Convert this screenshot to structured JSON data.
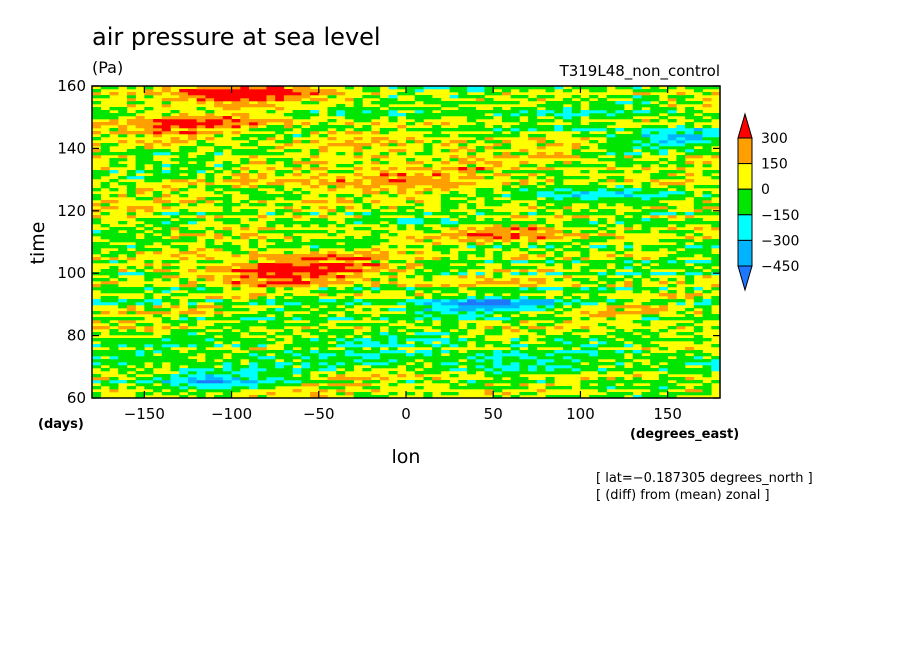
{
  "chart_data": {
    "type": "heatmap",
    "title": "air pressure at sea level",
    "units": "(Pa)",
    "experiment": "T319L48_non_control",
    "xlabel": "lon",
    "xunits": "(degrees_east)",
    "ylabel": "time",
    "yunits": "(days)",
    "xlim": [
      -180,
      180
    ],
    "ylim": [
      60,
      160
    ],
    "xticks": [
      -150,
      -100,
      -50,
      0,
      50,
      100,
      150
    ],
    "yticks": [
      60,
      80,
      100,
      120,
      140,
      160
    ],
    "xtick_labels": [
      "−150",
      "−100",
      "−50",
      "0",
      "50",
      "100",
      "150"
    ],
    "ytick_labels": [
      "60",
      "80",
      "100",
      "120",
      "140",
      "160"
    ],
    "notes": [
      "[ lat=−0.187305 degrees_north ]",
      "[ (diff) from (mean) zonal ]"
    ],
    "colorbar": {
      "levels": [
        -450,
        -300,
        -150,
        0,
        150,
        300
      ],
      "labels": [
        "300",
        "150",
        "0",
        "−150",
        "−300",
        "−450"
      ],
      "colors": [
        "#1e78ff",
        "#00b4ff",
        "#00ffff",
        "#00e600",
        "#ffff00",
        "#ffa000",
        "#ff0000"
      ]
    }
  }
}
